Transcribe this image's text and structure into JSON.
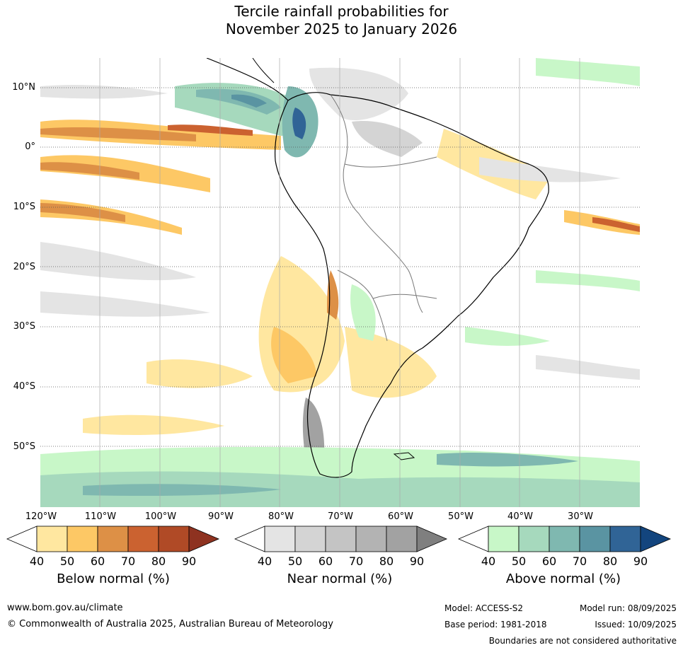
{
  "title": {
    "line1": "Tercile rainfall probabilities for",
    "line2": "November 2025 to January 2026"
  },
  "axes": {
    "latitudes": [
      "10°N",
      "0°",
      "10°S",
      "20°S",
      "30°S",
      "40°S",
      "50°S"
    ],
    "longitudes": [
      "120°W",
      "110°W",
      "100°W",
      "90°W",
      "80°W",
      "70°W",
      "60°W",
      "50°W",
      "40°W",
      "30°W"
    ]
  },
  "legends": [
    {
      "name": "Below normal (%)",
      "ticks": [
        "40",
        "50",
        "60",
        "70",
        "80",
        "90"
      ],
      "colors": [
        "#ffffff",
        "#ffe7a0",
        "#fdc865",
        "#dd9046",
        "#cb6230",
        "#b04a26",
        "#8e3220"
      ]
    },
    {
      "name": "Near normal (%)",
      "ticks": [
        "40",
        "50",
        "60",
        "70",
        "80",
        "90"
      ],
      "colors": [
        "#ffffff",
        "#e4e4e4",
        "#d4d4d4",
        "#c4c4c4",
        "#b3b3b3",
        "#a2a2a2",
        "#7f7f7f"
      ]
    },
    {
      "name": "Above normal (%)",
      "ticks": [
        "40",
        "50",
        "60",
        "70",
        "80",
        "90"
      ],
      "colors": [
        "#ffffff",
        "#c8f7c8",
        "#a6d9bd",
        "#7fb8b0",
        "#5a94a2",
        "#306496",
        "#13457e"
      ]
    }
  ],
  "footer": {
    "url": "www.bom.gov.au/climate",
    "copyright": "© Commonwealth of Australia 2025, Australian Bureau of Meteorology",
    "model": "Model: ACCESS-S2",
    "base_period": "Base period: 1981-2018",
    "model_run": "Model run: 08/09/2025",
    "issued": "Issued: 10/09/2025",
    "disclaimer": "Boundaries are not considered authoritative"
  }
}
